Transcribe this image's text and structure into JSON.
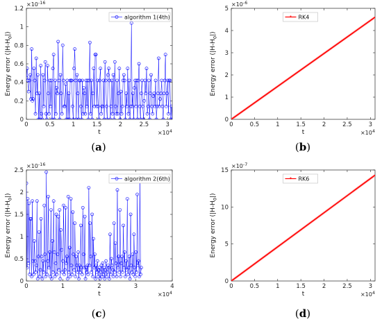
{
  "chart_data": [
    {
      "id": "a",
      "caption": "a",
      "type": "line",
      "series_style": "markers",
      "color": "#0000ff",
      "legend": "algorithm 1(4th)",
      "legend_position": "top-right",
      "xlabel": "t",
      "ylabel": "Energy error (|H-H",
      "ylabel_sub": "0",
      "ylabel_end": "|)",
      "xlim": [
        0,
        31000
      ],
      "ylim": [
        0,
        1.2
      ],
      "xticks": [
        0,
        0.5,
        1,
        1.5,
        2,
        2.5,
        3
      ],
      "xtick_labels": [
        "0",
        "0.5",
        "1",
        "1.5",
        "2",
        "2.5",
        "3"
      ],
      "x_scale": "×10",
      "x_exp": "4",
      "yticks": [
        0,
        0.2,
        0.4,
        0.6,
        0.8,
        1,
        1.2
      ],
      "ytick_labels": [
        "0",
        "0.2",
        "0.4",
        "0.6",
        "0.8",
        "1",
        "1.2"
      ],
      "y_scale": "×10",
      "y_exp": "-16",
      "x_end": 31000,
      "values": [
        0.45,
        0.55,
        0.42,
        0.3,
        0.42,
        0.48,
        0.22,
        0.76,
        0.2,
        0.22,
        0.55,
        0.42,
        0.06,
        0.66,
        0.28,
        0.48,
        0.0,
        0.28,
        0.0,
        0.58,
        0.06,
        0.0,
        0.48,
        0.14,
        0.42,
        0.62,
        0.06,
        0.0,
        0.58,
        0.28,
        0.06,
        0.42,
        0.14,
        0.42,
        0.0,
        0.55,
        0.7,
        0.0,
        0.42,
        0.06,
        0.34,
        0.28,
        0.84,
        0.42,
        0.0,
        0.48,
        0.28,
        0.06,
        0.8,
        0.42,
        0.14,
        0.14,
        0.38,
        0.0,
        0.42,
        0.0,
        0.28,
        0.0,
        0.42,
        0.42,
        0.42,
        0.14,
        0.0,
        0.55,
        0.76,
        0.42,
        0.0,
        0.48,
        0.28,
        0.0,
        0.42,
        0.42,
        0.14,
        0.0,
        0.42,
        0.06,
        0.34,
        0.28,
        0.06,
        0.42,
        0.14,
        0.42,
        0.0,
        0.42,
        0.83,
        0.06,
        0.42,
        0.0,
        0.28,
        0.55,
        0.14,
        0.7,
        0.7,
        0.14,
        0.42,
        0.14,
        0.0,
        0.42,
        0.55,
        0.06,
        0.14,
        0.14,
        0.42,
        0.0,
        0.62,
        0.42,
        0.14,
        0.0,
        0.48,
        0.55,
        0.42,
        0.0,
        0.14,
        0.42,
        0.06,
        0.48,
        0.0,
        0.62,
        0.14,
        0.06,
        0.42,
        0.06,
        0.28,
        0.55,
        0.0,
        0.3,
        0.06,
        0.14,
        0.42,
        0.48,
        0.42,
        0.0,
        0.28,
        0.14,
        0.55,
        0.06,
        0.42,
        0.0,
        0.14,
        1.04,
        0.14,
        0.28,
        0.0,
        0.34,
        0.42,
        0.14,
        0.42,
        0.0,
        0.42,
        0.6,
        0.14,
        0.0,
        0.28,
        0.42,
        0.14,
        0.0,
        0.2,
        0.42,
        0.28,
        0.55,
        0.06,
        0.14,
        0.42,
        0.0,
        0.28,
        0.48,
        0.14,
        0.06,
        0.25,
        0.28,
        0.14,
        0.42,
        0.0,
        0.14,
        0.28,
        0.66,
        0.14,
        0.22,
        0.28,
        0.42,
        0.14,
        0.0,
        0.28,
        0.42,
        0.7,
        0.14,
        0.28,
        0.42,
        0.06,
        0.42,
        0.42,
        0.0,
        0.14,
        0.0
      ]
    },
    {
      "id": "b",
      "caption": "b",
      "type": "line",
      "series_style": "line",
      "color": "#ff0000",
      "legend": "RK4",
      "legend_position": "top-center",
      "xlabel": "t",
      "ylabel": "Energy error (|H-H",
      "ylabel_sub": "0",
      "ylabel_end": "|)",
      "xlim": [
        0,
        31000
      ],
      "ylim": [
        0,
        5
      ],
      "xticks": [
        0,
        0.5,
        1,
        1.5,
        2,
        2.5,
        3
      ],
      "xtick_labels": [
        "0",
        "0.5",
        "1",
        "1.5",
        "2",
        "2.5",
        "3"
      ],
      "x_scale": "×10",
      "x_exp": "4",
      "yticks": [
        0,
        1,
        2,
        3,
        4,
        5
      ],
      "ytick_labels": [
        "0",
        "1",
        "2",
        "3",
        "4",
        "5"
      ],
      "y_scale": "×10",
      "y_exp": "-6",
      "x": [
        0,
        31000
      ],
      "values": [
        0,
        4.6
      ]
    },
    {
      "id": "c",
      "caption": "c",
      "type": "line",
      "series_style": "markers",
      "color": "#0000ff",
      "legend": "algorithm 2(6th)",
      "legend_position": "top-right",
      "xlabel": "t",
      "ylabel": "Energy error (|H-H",
      "ylabel_sub": "0",
      "ylabel_end": "|)",
      "xlim": [
        0,
        40000
      ],
      "ylim": [
        0,
        2.5
      ],
      "xticks": [
        0,
        1,
        2,
        3,
        4
      ],
      "xtick_labels": [
        "0",
        "1",
        "2",
        "3",
        "4"
      ],
      "x_scale": "×10",
      "x_exp": "4",
      "yticks": [
        0,
        0.5,
        1,
        1.5,
        2,
        2.5
      ],
      "ytick_labels": [
        "0",
        "0.5",
        "1",
        "1.5",
        "2",
        "2.5"
      ],
      "y_scale": "×10",
      "y_exp": "-16",
      "x_end": 31500,
      "values": [
        2.2,
        0.3,
        1.85,
        0.4,
        1.75,
        0.15,
        1.4,
        1.4,
        0.1,
        1.8,
        0.45,
        0.15,
        0.9,
        0.45,
        0.2,
        0.35,
        1.8,
        0.05,
        0.55,
        1.1,
        0.1,
        0.25,
        1.4,
        0.55,
        0.05,
        0.45,
        0.2,
        1.7,
        0.6,
        0.1,
        2.45,
        0.15,
        0.45,
        1.9,
        0.3,
        0.65,
        0.1,
        1.6,
        0.05,
        0.9,
        0.2,
        1.8,
        0.65,
        0.1,
        0.4,
        1.5,
        0.15,
        0.6,
        1.45,
        0.25,
        1.6,
        0.05,
        1.15,
        0.7,
        0.2,
        0.45,
        1.7,
        0.15,
        0.25,
        1.65,
        0.4,
        0.55,
        0.05,
        1.9,
        0.2,
        0.75,
        0.1,
        1.85,
        0.35,
        0.15,
        1.55,
        0.6,
        0.25,
        1.3,
        0.1,
        0.55,
        0.35,
        0.2,
        0.65,
        0.05,
        0.35,
        0.2,
        1.25,
        0.3,
        0.15,
        1.65,
        0.6,
        0.3,
        1.45,
        0.05,
        0.3,
        0.2,
        0.35,
        0.15,
        2.1,
        0.35,
        1.3,
        0.55,
        0.2,
        1.5,
        0.1,
        0.95,
        0.3,
        0.6,
        0.05,
        0.35,
        0.2,
        0.45,
        0.1,
        0.25,
        0.3,
        0.05,
        0.2,
        0.35,
        0.1,
        0.4,
        0.15,
        0.3,
        0.05,
        0.25,
        0.45,
        0.1,
        0.2,
        0.35,
        0.3,
        0.05,
        1.05,
        0.15,
        0.5,
        0.35,
        0.25,
        0.1,
        1.3,
        0.2,
        0.85,
        0.4,
        0.1,
        2.05,
        0.3,
        0.55,
        0.2,
        1.6,
        0.1,
        0.4,
        0.55,
        0.2,
        1.25,
        0.3,
        0.65,
        0.1,
        0.45,
        0.25,
        1.85,
        0.15,
        0.3,
        0.55,
        0.05,
        1.5,
        0.35,
        0.2,
        0.6,
        0.15,
        1.05,
        0.3,
        0.1,
        0.65,
        0.2,
        1.95,
        0.35,
        0.45,
        0.1,
        2.25,
        0.15,
        0.3
      ]
    },
    {
      "id": "d",
      "caption": "d",
      "type": "line",
      "series_style": "line",
      "color": "#ff0000",
      "legend": "RK6",
      "legend_position": "top-center",
      "xlabel": "t",
      "ylabel": "Energy error (|H-H",
      "ylabel_sub": "0",
      "ylabel_end": "|)",
      "xlim": [
        0,
        31000
      ],
      "ylim": [
        0,
        15
      ],
      "xticks": [
        0,
        0.5,
        1,
        1.5,
        2,
        2.5,
        3
      ],
      "xtick_labels": [
        "0",
        "0.5",
        "1",
        "1.5",
        "2",
        "2.5",
        "3"
      ],
      "x_scale": "×10",
      "x_exp": "4",
      "yticks": [
        0,
        5,
        10,
        15
      ],
      "ytick_labels": [
        "0",
        "5",
        "10",
        "15"
      ],
      "y_scale": "×10",
      "y_exp": "-7",
      "x": [
        0,
        31000
      ],
      "values": [
        0,
        14.3
      ]
    }
  ]
}
